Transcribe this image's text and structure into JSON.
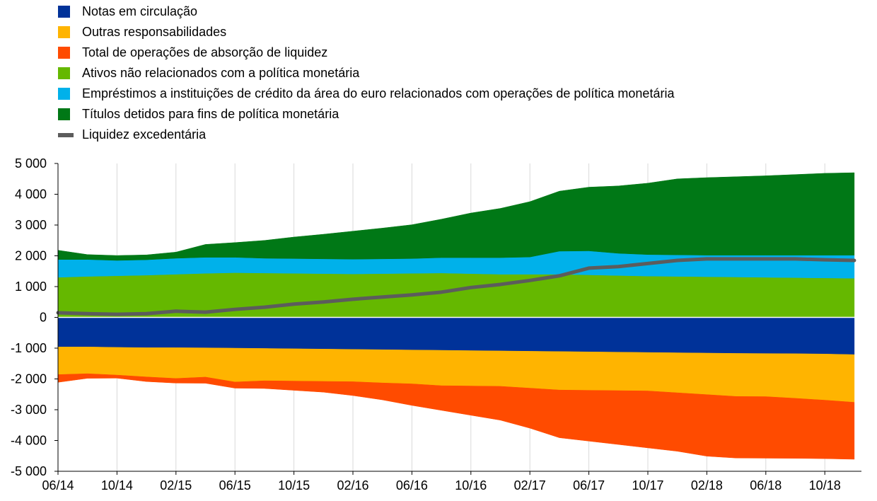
{
  "chart_data": {
    "type": "area",
    "title": "",
    "xlabel": "",
    "ylabel": "",
    "ylim": [
      -5000,
      5000
    ],
    "y_ticks": [
      5000,
      4000,
      3000,
      2000,
      1000,
      0,
      -1000,
      -2000,
      -3000,
      -4000,
      -5000
    ],
    "y_tick_labels": [
      "5 000",
      "4 000",
      "3 000",
      "2 000",
      "1 000",
      "0",
      "-1 000",
      "-2 000",
      "-3 000",
      "-4 000",
      "-5 000"
    ],
    "x_tick_labels": [
      "06/14",
      "10/14",
      "02/15",
      "06/15",
      "10/15",
      "02/16",
      "06/16",
      "10/16",
      "02/17",
      "06/17",
      "10/17",
      "02/18",
      "06/18",
      "10/18"
    ],
    "x_dates": [
      "2014-06",
      "2014-08",
      "2014-10",
      "2014-12",
      "2015-02",
      "2015-04",
      "2015-06",
      "2015-08",
      "2015-10",
      "2015-12",
      "2016-02",
      "2016-04",
      "2016-06",
      "2016-08",
      "2016-10",
      "2016-12",
      "2017-02",
      "2017-04",
      "2017-06",
      "2017-08",
      "2017-10",
      "2017-12",
      "2018-02",
      "2018-04",
      "2018-06",
      "2018-08",
      "2018-10",
      "2018-12"
    ],
    "grid": "vertical",
    "legend_position": "top-left",
    "series": [
      {
        "name": "Notas em circulação",
        "color": "#003299",
        "side": "liability",
        "values": [
          -960,
          -960,
          -975,
          -985,
          -985,
          -990,
          -1000,
          -1010,
          -1020,
          -1030,
          -1040,
          -1050,
          -1060,
          -1070,
          -1080,
          -1090,
          -1100,
          -1110,
          -1120,
          -1130,
          -1140,
          -1150,
          -1160,
          -1170,
          -1175,
          -1180,
          -1190,
          -1210
        ]
      },
      {
        "name": "Outras responsabilidades",
        "color": "#FFB400",
        "side": "liability",
        "values": [
          -900,
          -870,
          -900,
          -950,
          -1000,
          -950,
          -1100,
          -1050,
          -1050,
          -1050,
          -1050,
          -1080,
          -1100,
          -1150,
          -1150,
          -1150,
          -1200,
          -1250,
          -1250,
          -1250,
          -1250,
          -1300,
          -1350,
          -1400,
          -1400,
          -1450,
          -1500,
          -1550
        ]
      },
      {
        "name": "Total de operações de absorção de liquidez",
        "color": "#FF4B00",
        "side": "liability",
        "values": [
          -250,
          -150,
          -100,
          -150,
          -150,
          -200,
          -200,
          -250,
          -300,
          -350,
          -450,
          -550,
          -700,
          -800,
          -950,
          -1100,
          -1300,
          -1550,
          -1650,
          -1750,
          -1850,
          -1900,
          -2000,
          -2000,
          -2000,
          -1950,
          -1900,
          -1850
        ]
      },
      {
        "name": "Ativos não relacionados com a política monetária",
        "color": "#65B800",
        "side": "asset",
        "values": [
          1300,
          1330,
          1350,
          1370,
          1400,
          1430,
          1450,
          1440,
          1430,
          1420,
          1410,
          1420,
          1430,
          1440,
          1420,
          1400,
          1400,
          1400,
          1380,
          1360,
          1340,
          1330,
          1320,
          1310,
          1300,
          1290,
          1280,
          1270
        ]
      },
      {
        "name": "Empréstimos a instituições de crédito da área do euro relacionados com operações de política monetária",
        "color": "#00B1EA",
        "side": "asset",
        "values": [
          580,
          550,
          500,
          500,
          520,
          520,
          500,
          480,
          480,
          480,
          480,
          480,
          480,
          500,
          520,
          540,
          560,
          750,
          780,
          720,
          700,
          700,
          700,
          710,
          720,
          730,
          740,
          750
        ]
      },
      {
        "name": "Títulos detidos para fins de política monetária",
        "color": "#007816",
        "side": "asset",
        "values": [
          300,
          160,
          160,
          160,
          200,
          420,
          480,
          580,
          700,
          800,
          910,
          1000,
          1100,
          1250,
          1450,
          1600,
          1800,
          1950,
          2070,
          2190,
          2320,
          2470,
          2520,
          2550,
          2580,
          2620,
          2660,
          2680
        ]
      },
      {
        "name": "Liquidez excedentária",
        "color": "#5C5C5C",
        "type": "line",
        "values": [
          150,
          120,
          100,
          120,
          200,
          170,
          260,
          330,
          430,
          500,
          590,
          660,
          730,
          820,
          970,
          1070,
          1200,
          1350,
          1600,
          1650,
          1750,
          1850,
          1900,
          1900,
          1900,
          1900,
          1870,
          1850
        ]
      }
    ]
  }
}
